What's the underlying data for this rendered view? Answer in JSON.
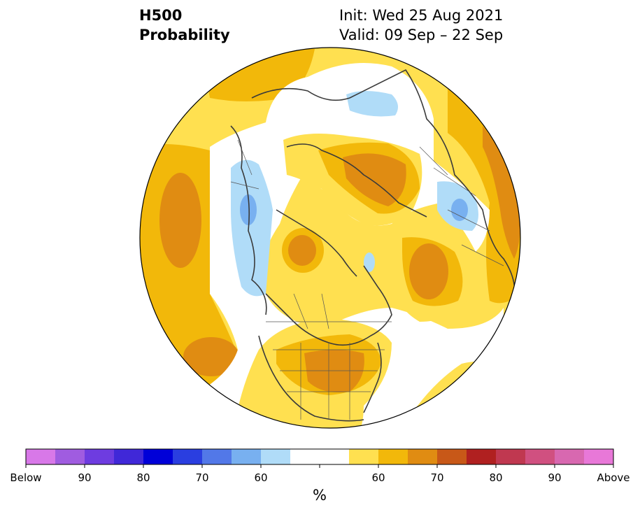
{
  "header": {
    "title_line1": "H500",
    "title_line2": "Probability",
    "init_text": "Init: Wed 25 Aug 2021",
    "valid_text": "Valid: 09 Sep – 22 Sep"
  },
  "colorbar": {
    "unit": "%",
    "tick_labels": [
      "Below",
      "90",
      "80",
      "70",
      "60",
      "60",
      "70",
      "80",
      "90",
      "Above"
    ],
    "colors": [
      "#d878e8",
      "#a05ce0",
      "#6e3ce0",
      "#4028d8",
      "#0000d8",
      "#2a3ee0",
      "#5278e8",
      "#78b0f0",
      "#b0dcf8",
      "#ffffff",
      "#ffffff",
      "#ffe050",
      "#f2b80a",
      "#e08c12",
      "#c85818",
      "#b02020",
      "#c03850",
      "#d05080",
      "#d868b0",
      "#e878d8"
    ],
    "contour_colors": {
      "below_60": "#b0dcf8",
      "below_70": "#78b0f0",
      "below_80": "#5278e8",
      "above_60": "#ffe050",
      "above_70": "#f2b80a",
      "above_80": "#e08c12"
    }
  },
  "map": {
    "projection": "north-polar-stereographic",
    "field": "500-hPa height probability"
  }
}
